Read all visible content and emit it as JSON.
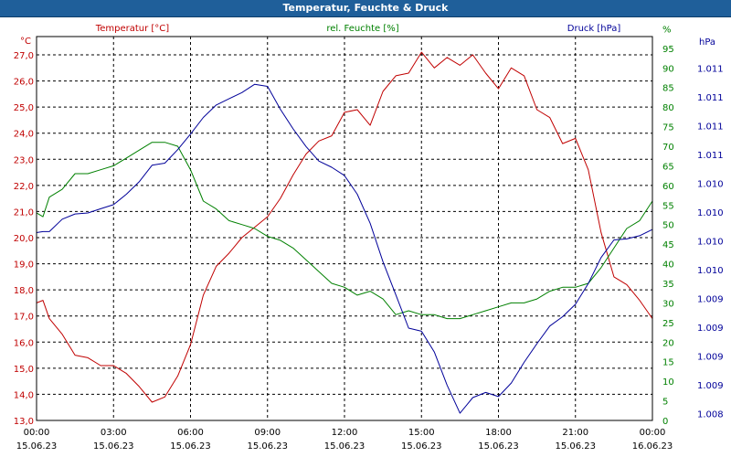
{
  "window": {
    "title": "Temperatur, Feuchte & Druck"
  },
  "chart_data": {
    "type": "line",
    "title": "Temperatur, Feuchte & Druck",
    "grid": true,
    "x_range": [
      "2023-06-15 00:00",
      "2023-06-16 00:00"
    ],
    "x_ticks": [
      {
        "time": "00:00",
        "date": "15.06.23"
      },
      {
        "time": "03:00",
        "date": "15.06.23"
      },
      {
        "time": "06:00",
        "date": "15.06.23"
      },
      {
        "time": "09:00",
        "date": "15.06.23"
      },
      {
        "time": "12:00",
        "date": "15.06.23"
      },
      {
        "time": "15:00",
        "date": "15.06.23"
      },
      {
        "time": "18:00",
        "date": "15.06.23"
      },
      {
        "time": "21:00",
        "date": "15.06.23"
      },
      {
        "time": "00:00",
        "date": "16.06.23"
      }
    ],
    "axes": {
      "temperature": {
        "unit": "°C",
        "color": "#c00000",
        "range": [
          13.0,
          27.7
        ],
        "ticks": [
          "13,0",
          "14,0",
          "15,0",
          "16,0",
          "17,0",
          "18,0",
          "19,0",
          "20,0",
          "21,0",
          "22,0",
          "23,0",
          "24,0",
          "25,0",
          "26,0",
          "27,0"
        ]
      },
      "humidity": {
        "unit": "%",
        "color": "#008000",
        "range": [
          0,
          98
        ],
        "ticks": [
          "0",
          "5",
          "10",
          "15",
          "20",
          "25",
          "30",
          "35",
          "40",
          "45",
          "50",
          "55",
          "60",
          "65",
          "70",
          "75",
          "80",
          "85",
          "90",
          "95",
          "%"
        ]
      },
      "pressure": {
        "unit": "hPa",
        "color": "#000099",
        "range": [
          1008.2,
          1011.9
        ],
        "ticks": [
          "1.008",
          "1.009",
          "1.009",
          "1.009",
          "1.009",
          "1.010",
          "1.010",
          "1.010",
          "1.010",
          "1.011",
          "1.011",
          "1.011",
          "1.011"
        ]
      }
    },
    "series": [
      {
        "name": "Temperatur [°C]",
        "axis": "temperature",
        "color": "#c00000",
        "x": [
          "00:00",
          "00:15",
          "00:30",
          "01:00",
          "01:30",
          "02:00",
          "02:30",
          "03:00",
          "03:30",
          "04:00",
          "04:30",
          "05:00",
          "05:30",
          "06:00",
          "06:30",
          "07:00",
          "07:30",
          "08:00",
          "08:30",
          "09:00",
          "09:30",
          "10:00",
          "10:30",
          "11:00",
          "11:30",
          "12:00",
          "12:30",
          "13:00",
          "13:30",
          "14:00",
          "14:30",
          "15:00",
          "15:30",
          "16:00",
          "16:30",
          "17:00",
          "17:30",
          "18:00",
          "18:30",
          "19:00",
          "19:30",
          "20:00",
          "20:30",
          "21:00",
          "21:30",
          "22:00",
          "22:30",
          "23:00",
          "23:30",
          "24:00"
        ],
        "y": [
          17.5,
          17.6,
          16.9,
          16.3,
          15.5,
          15.4,
          15.1,
          15.1,
          14.8,
          14.3,
          13.7,
          13.9,
          14.7,
          15.9,
          17.8,
          18.9,
          19.4,
          20.0,
          20.4,
          20.8,
          21.5,
          22.4,
          23.2,
          23.7,
          23.9,
          24.8,
          24.9,
          24.3,
          25.6,
          26.2,
          26.3,
          27.1,
          26.5,
          26.9,
          26.6,
          27.0,
          26.3,
          25.7,
          26.5,
          26.2,
          24.9,
          24.6,
          23.6,
          23.8,
          22.6,
          20.2,
          18.5,
          18.2,
          17.6,
          16.9
        ]
      },
      {
        "name": "rel. Feuchte [%]",
        "axis": "humidity",
        "color": "#008000",
        "x": [
          "00:00",
          "00:15",
          "00:30",
          "01:00",
          "01:30",
          "02:00",
          "02:30",
          "03:00",
          "03:30",
          "04:00",
          "04:30",
          "05:00",
          "05:30",
          "06:00",
          "06:30",
          "07:00",
          "07:30",
          "08:00",
          "08:30",
          "09:00",
          "09:30",
          "10:00",
          "10:30",
          "11:00",
          "11:30",
          "12:00",
          "12:30",
          "13:00",
          "13:30",
          "14:00",
          "14:30",
          "15:00",
          "15:30",
          "16:00",
          "16:30",
          "17:00",
          "17:30",
          "18:00",
          "18:30",
          "19:00",
          "19:30",
          "20:00",
          "20:30",
          "21:00",
          "21:30",
          "22:00",
          "22:30",
          "23:00",
          "23:30",
          "24:00"
        ],
        "y": [
          53,
          52,
          57,
          59,
          63,
          63,
          64,
          65,
          67,
          69,
          71,
          71,
          70,
          64,
          56,
          54,
          51,
          50,
          49,
          47,
          46,
          44,
          41,
          38,
          35,
          34,
          32,
          33,
          31,
          27,
          28,
          27,
          27,
          26,
          26,
          27,
          28,
          29,
          30,
          30,
          31,
          33,
          34,
          34,
          35,
          39,
          44,
          49,
          51,
          56
        ]
      },
      {
        "name": "Druck [hPa]",
        "axis": "pressure",
        "color": "#000099",
        "x": [
          "00:00",
          "00:15",
          "00:30",
          "01:00",
          "01:30",
          "02:00",
          "02:30",
          "03:00",
          "03:30",
          "04:00",
          "04:30",
          "05:00",
          "05:30",
          "06:00",
          "06:30",
          "07:00",
          "07:30",
          "08:00",
          "08:30",
          "09:00",
          "09:30",
          "10:00",
          "10:30",
          "11:00",
          "11:30",
          "12:00",
          "12:30",
          "13:00",
          "13:30",
          "14:00",
          "14:30",
          "15:00",
          "15:30",
          "16:00",
          "16:30",
          "17:00",
          "17:30",
          "18:00",
          "18:30",
          "19:00",
          "19:30",
          "20:00",
          "20:30",
          "21:00",
          "21:30",
          "22:00",
          "22:30",
          "23:00",
          "23:30",
          "24:00"
        ],
        "y": [
          1010.01,
          1010.02,
          1010.02,
          1010.14,
          1010.19,
          1010.2,
          1010.24,
          1010.28,
          1010.38,
          1010.5,
          1010.66,
          1010.68,
          1010.81,
          1010.96,
          1011.12,
          1011.24,
          1011.3,
          1011.36,
          1011.44,
          1011.42,
          1011.2,
          1011.01,
          1010.84,
          1010.7,
          1010.64,
          1010.56,
          1010.38,
          1010.1,
          1009.73,
          1009.41,
          1009.09,
          1009.06,
          1008.86,
          1008.54,
          1008.27,
          1008.42,
          1008.47,
          1008.43,
          1008.56,
          1008.76,
          1008.94,
          1009.11,
          1009.2,
          1009.32,
          1009.52,
          1009.77,
          1009.94,
          1009.95,
          1009.98,
          1010.04
        ]
      }
    ]
  }
}
